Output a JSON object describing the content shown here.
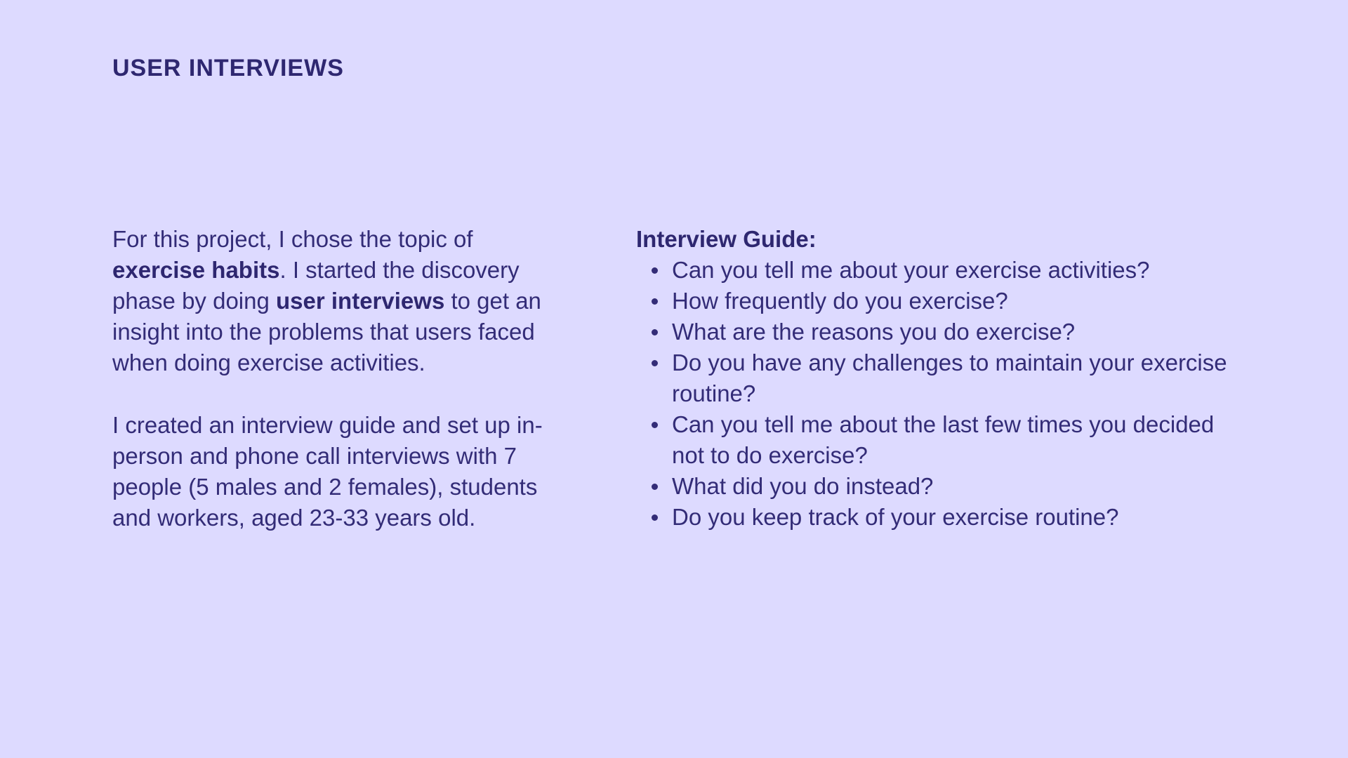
{
  "header": {
    "title": "USER INTERVIEWS"
  },
  "intro": {
    "p1_a": "For this project, I chose the topic of ",
    "p1_bold1": "exercise habits",
    "p1_b": ". I started the discovery phase by doing ",
    "p1_bold2": "user interviews",
    "p1_c": " to get an insight into the problems that users faced when doing exercise activities.",
    "p2": "I created an interview guide and set up in-person and phone call interviews with 7 people (5 males and 2 females), students and workers, aged 23-33 years old."
  },
  "guide": {
    "heading": "Interview Guide:",
    "questions": [
      "Can you tell me about your exercise activities?",
      "How frequently do you exercise?",
      "What are the reasons you do exercise?",
      "Do you have any challenges to maintain your exercise routine?",
      "Can you tell me about the last few times you decided not to do exercise?",
      "What did you do instead?",
      "Do you keep track of your exercise routine?"
    ]
  }
}
